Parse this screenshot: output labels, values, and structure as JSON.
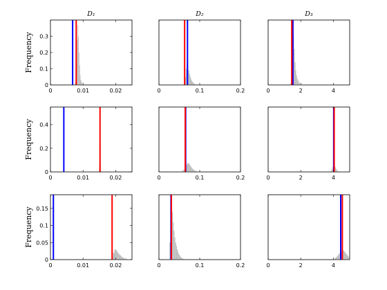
{
  "colors": {
    "background": "#ffffff",
    "histogram": "#bdbdbd",
    "blue_line": "#0000ff",
    "red_line": "#ff0000"
  },
  "chart_data": [
    {
      "type": "bar",
      "row": 1,
      "col": 1,
      "title": "D₁",
      "ylabel": "Frequency",
      "xlim": [
        0,
        0.025
      ],
      "ylim": [
        0,
        0.4
      ],
      "xticks": [
        0,
        0.01,
        0.02
      ],
      "xtick_labels": [
        "0",
        "0.01",
        "0.02"
      ],
      "yticks": [
        0,
        0.1,
        0.2,
        0.3
      ],
      "ytick_labels": [
        "0",
        "0.1",
        "0.2",
        "0.3"
      ],
      "blue_line": 0.0068,
      "red_line": 0.0079,
      "histogram": {
        "bin_start": 0.0076,
        "bin_width": 0.00018,
        "values": [
          0.02,
          0.06,
          0.14,
          0.28,
          0.37,
          0.3,
          0.2,
          0.12,
          0.06,
          0.03,
          0.02,
          0.01
        ]
      }
    },
    {
      "type": "bar",
      "row": 1,
      "col": 2,
      "title": "D₂",
      "xlim": [
        0,
        0.2
      ],
      "ylim": [
        0,
        0.4
      ],
      "xticks": [
        0,
        0.1,
        0.2
      ],
      "xtick_labels": [
        "0",
        "0.1",
        "0.2"
      ],
      "yticks": [],
      "ytick_labels": [],
      "blue_line": 0.07,
      "red_line": 0.063,
      "histogram": {
        "bin_start": 0.062,
        "bin_width": 0.002,
        "values": [
          0.02,
          0.05,
          0.1,
          0.14,
          0.12,
          0.09,
          0.07,
          0.05,
          0.035,
          0.025,
          0.018,
          0.012,
          0.008,
          0.005
        ]
      }
    },
    {
      "type": "bar",
      "row": 1,
      "col": 3,
      "title": "D₃",
      "xlim": [
        0,
        5
      ],
      "ylim": [
        0,
        0.4
      ],
      "xticks": [
        0,
        2,
        4
      ],
      "xtick_labels": [
        "0",
        "2",
        "4"
      ],
      "yticks": [],
      "ytick_labels": [],
      "blue_line": 1.52,
      "red_line": 1.45,
      "histogram": {
        "bin_start": 1.36,
        "bin_width": 0.045,
        "values": [
          0.01,
          0.04,
          0.1,
          0.2,
          0.3,
          0.22,
          0.14,
          0.09,
          0.06,
          0.04,
          0.03,
          0.02,
          0.01
        ]
      }
    },
    {
      "type": "bar",
      "row": 2,
      "col": 1,
      "ylabel": "Frequency",
      "xlim": [
        0,
        0.025
      ],
      "ylim": [
        0,
        0.55
      ],
      "xticks": [
        0,
        0.01,
        0.02
      ],
      "xtick_labels": [
        "0",
        "0.01",
        "0.02"
      ],
      "yticks": [
        0,
        0.2,
        0.4
      ],
      "ytick_labels": [
        "0",
        "0.2",
        "0.4"
      ],
      "blue_line": 0.0041,
      "red_line": 0.0152,
      "histogram": {
        "bin_start": 0.0149,
        "bin_width": 0.0001,
        "values": [
          0.05,
          0.25,
          0.5,
          0.3,
          0.08,
          0.02
        ]
      }
    },
    {
      "type": "bar",
      "row": 2,
      "col": 2,
      "xlim": [
        0,
        0.2
      ],
      "ylim": [
        0,
        0.55
      ],
      "xticks": [
        0,
        0.1,
        0.2
      ],
      "xtick_labels": [
        "0",
        "0.1",
        "0.2"
      ],
      "yticks": [],
      "ytick_labels": [],
      "blue_line": 0.0655,
      "red_line": 0.0645,
      "histogram": {
        "bin_start": 0.054,
        "bin_width": 0.003,
        "values": [
          0.005,
          0.012,
          0.02,
          0.04,
          0.06,
          0.075,
          0.07,
          0.055,
          0.04,
          0.028,
          0.018,
          0.012,
          0.008,
          0.005,
          0.003
        ]
      }
    },
    {
      "type": "bar",
      "row": 2,
      "col": 3,
      "xlim": [
        0,
        5
      ],
      "ylim": [
        0,
        0.55
      ],
      "xticks": [
        0,
        2,
        4
      ],
      "xtick_labels": [
        "0",
        "2",
        "4"
      ],
      "yticks": [],
      "ytick_labels": [],
      "blue_line": 4.02,
      "red_line": 4.05,
      "histogram": {
        "bin_start": 3.8,
        "bin_width": 0.05,
        "values": [
          0.005,
          0.012,
          0.025,
          0.045,
          0.06,
          0.055,
          0.04,
          0.025,
          0.014,
          0.008
        ]
      }
    },
    {
      "type": "bar",
      "row": 3,
      "col": 1,
      "ylabel": "Frequency",
      "xlim": [
        0,
        0.025
      ],
      "ylim": [
        0,
        0.19
      ],
      "xticks": [
        0,
        0.01,
        0.02
      ],
      "xtick_labels": [
        "0",
        "0.01",
        "0.02"
      ],
      "yticks": [
        0,
        0.05,
        0.1,
        0.15
      ],
      "ytick_labels": [
        "0",
        "0.05",
        "0.1",
        "0.15"
      ],
      "blue_line": 0.0009,
      "red_line": 0.0189,
      "histogram": {
        "bin_start": 0.0188,
        "bin_width": 0.0004,
        "values": [
          0.01,
          0.02,
          0.03,
          0.028,
          0.022,
          0.017,
          0.013,
          0.009,
          0.006,
          0.004,
          0.003,
          0.002,
          0.001,
          0.001,
          0.001,
          0.001
        ]
      }
    },
    {
      "type": "bar",
      "row": 3,
      "col": 2,
      "xlim": [
        0,
        0.2
      ],
      "ylim": [
        0,
        0.19
      ],
      "xticks": [
        0,
        0.1,
        0.2
      ],
      "xtick_labels": [
        "0",
        "0.1",
        "0.2"
      ],
      "yticks": [],
      "ytick_labels": [],
      "blue_line": 0.0295,
      "red_line": 0.0305,
      "histogram": {
        "bin_start": 0.026,
        "bin_width": 0.002,
        "values": [
          0.05,
          0.12,
          0.16,
          0.14,
          0.11,
          0.085,
          0.065,
          0.05,
          0.04,
          0.03,
          0.022,
          0.016,
          0.012,
          0.008,
          0.006,
          0.004,
          0.003,
          0.002
        ]
      }
    },
    {
      "type": "bar",
      "row": 3,
      "col": 3,
      "xlim": [
        0,
        5
      ],
      "ylim": [
        0,
        0.19
      ],
      "xticks": [
        0,
        2,
        4
      ],
      "xtick_labels": [
        "0",
        "2",
        "4"
      ],
      "yticks": [],
      "ytick_labels": [],
      "blue_line": 4.45,
      "red_line": 4.55,
      "histogram": {
        "bin_start": 4.0,
        "bin_width": 0.05,
        "values": [
          0.001,
          0.003,
          0.005,
          0.007,
          0.009,
          0.012,
          0.015,
          0.018,
          0.021,
          0.024,
          0.026,
          0.027,
          0.026,
          0.024,
          0.021,
          0.018,
          0.015,
          0.012,
          0.009,
          0.007
        ]
      }
    }
  ]
}
